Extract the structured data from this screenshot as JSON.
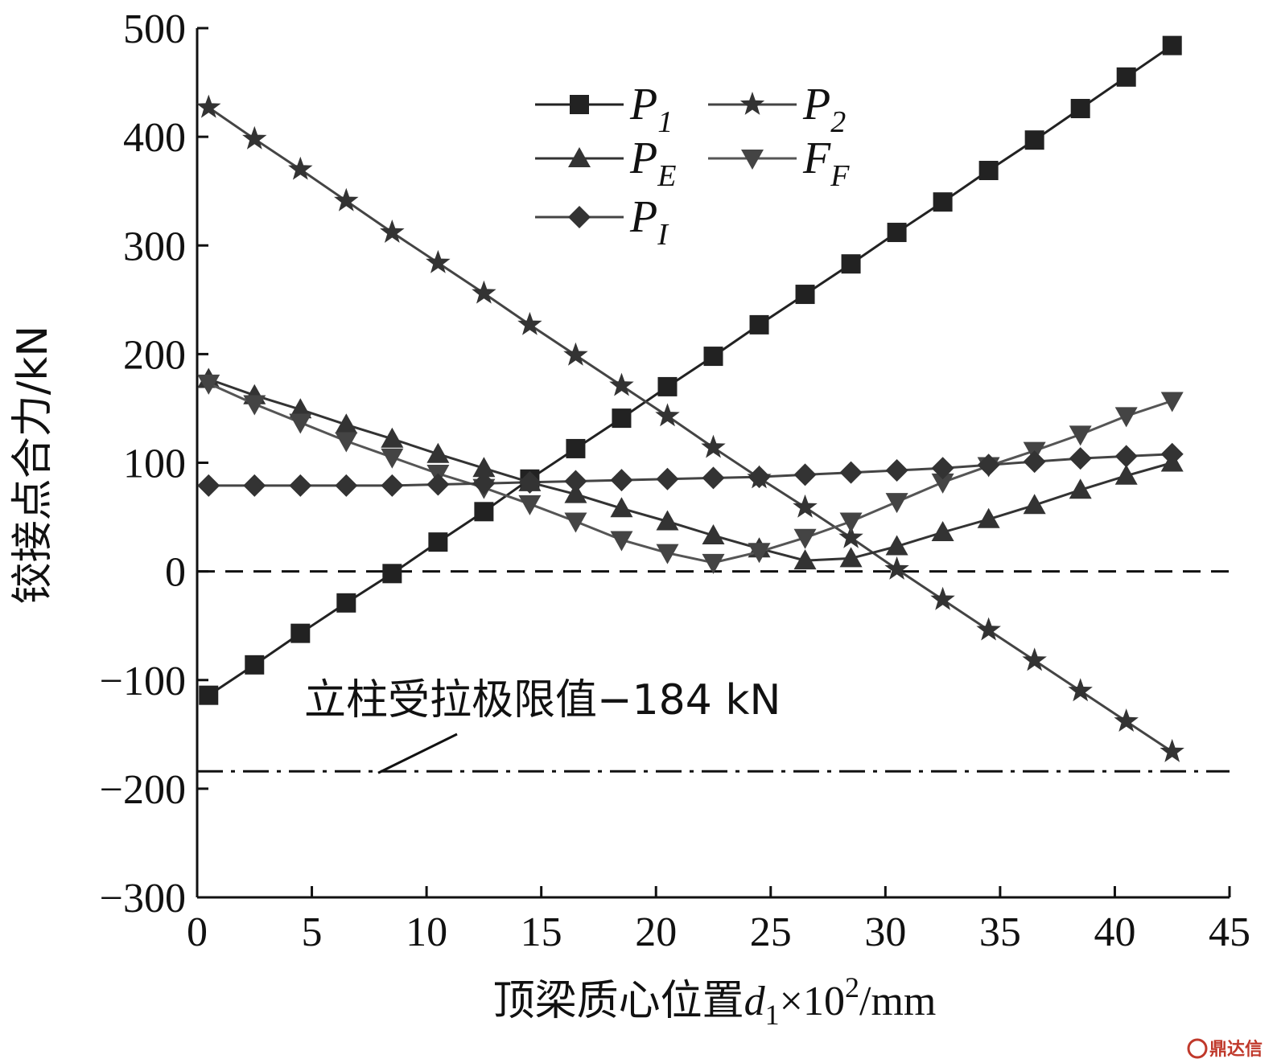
{
  "chart_data": {
    "type": "line",
    "xlabel_main": "顶梁质心位置",
    "xlabel_var": "d",
    "xlabel_sub": "1",
    "xlabel_mult": "×10",
    "xlabel_sup": "2",
    "xlabel_unit": "/mm",
    "ylabel": "铰接点合力/kN",
    "xlim": [
      0,
      45
    ],
    "ylim": [
      -300,
      500
    ],
    "xticks": [
      0,
      5,
      10,
      15,
      20,
      25,
      30,
      35,
      40,
      45
    ],
    "yticks": [
      -300,
      -200,
      -100,
      0,
      100,
      200,
      300,
      400,
      500
    ],
    "ytick_labels": [
      "−300",
      "−200",
      "−100",
      "0",
      "100",
      "200",
      "300",
      "400",
      "500"
    ],
    "legend_position": "top-center",
    "x": [
      0.5,
      2.5,
      4.5,
      6.5,
      8.5,
      10.5,
      12.5,
      14.5,
      16.5,
      18.5,
      20.5,
      22.5,
      24.5,
      26.5,
      28.5,
      30.5,
      32.5,
      34.5,
      36.5,
      38.5,
      40.5,
      42.5
    ],
    "series": [
      {
        "key": "P1",
        "name_main": "P",
        "name_sub": "1",
        "marker": "square",
        "values": [
          -114,
          -86,
          -57,
          -29,
          -2,
          27,
          55,
          85,
          113,
          141,
          170,
          198,
          227,
          255,
          283,
          312,
          340,
          369,
          397,
          426,
          455,
          484
        ]
      },
      {
        "key": "P2",
        "name_main": "P",
        "name_sub": "2",
        "marker": "star",
        "values": [
          427,
          398,
          370,
          341,
          312,
          284,
          256,
          227,
          199,
          171,
          143,
          114,
          86,
          59,
          31,
          2,
          -26,
          -54,
          -82,
          -110,
          -138,
          -166
        ]
      },
      {
        "key": "PE",
        "name_main": "P",
        "name_sub": "E",
        "marker": "triangle-up",
        "values": [
          177,
          162,
          149,
          135,
          122,
          108,
          95,
          82,
          71,
          58,
          46,
          33,
          21,
          10,
          12,
          23,
          36,
          48,
          61,
          75,
          88,
          100
        ]
      },
      {
        "key": "FF",
        "name_main": "F",
        "name_sub": "F",
        "marker": "triangle-down",
        "values": [
          173,
          154,
          137,
          120,
          105,
          90,
          77,
          62,
          46,
          29,
          17,
          8,
          18,
          31,
          46,
          64,
          82,
          97,
          111,
          126,
          143,
          157
        ]
      },
      {
        "key": "PI",
        "name_main": "P",
        "name_sub": "I",
        "marker": "diamond",
        "values": [
          79,
          79,
          79,
          79,
          79,
          80,
          81,
          82,
          83,
          84,
          85,
          86,
          87,
          89,
          91,
          93,
          95,
          98,
          101,
          104,
          106,
          108
        ]
      }
    ],
    "reference_lines": [
      {
        "y": 0,
        "style": "dashed"
      },
      {
        "y": -184,
        "style": "dash-dot",
        "label": "立柱受拉极限值−184 kN"
      }
    ]
  },
  "watermark": "鼎达信"
}
